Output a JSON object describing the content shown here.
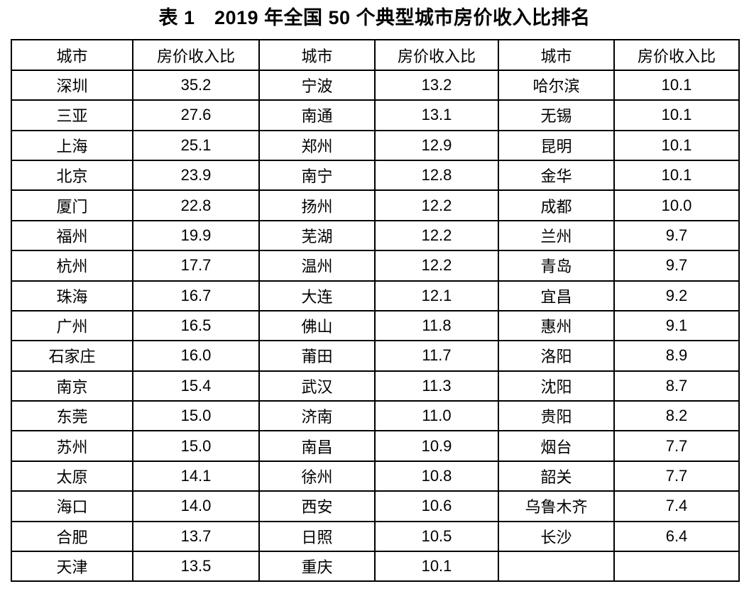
{
  "page": {
    "background_color": "#ffffff",
    "text_color": "#000000",
    "border_color": "#000000"
  },
  "title": "表 1　2019 年全国 50 个典型城市房价收入比排名",
  "table": {
    "headers": [
      "城市",
      "房价收入比",
      "城市",
      "房价收入比",
      "城市",
      "房价收入比"
    ],
    "rows": [
      [
        "深圳",
        "35.2",
        "宁波",
        "13.2",
        "哈尔滨",
        "10.1"
      ],
      [
        "三亚",
        "27.6",
        "南通",
        "13.1",
        "无锡",
        "10.1"
      ],
      [
        "上海",
        "25.1",
        "郑州",
        "12.9",
        "昆明",
        "10.1"
      ],
      [
        "北京",
        "23.9",
        "南宁",
        "12.8",
        "金华",
        "10.1"
      ],
      [
        "厦门",
        "22.8",
        "扬州",
        "12.2",
        "成都",
        "10.0"
      ],
      [
        "福州",
        "19.9",
        "芜湖",
        "12.2",
        "兰州",
        "9.7"
      ],
      [
        "杭州",
        "17.7",
        "温州",
        "12.2",
        "青岛",
        "9.7"
      ],
      [
        "珠海",
        "16.7",
        "大连",
        "12.1",
        "宜昌",
        "9.2"
      ],
      [
        "广州",
        "16.5",
        "佛山",
        "11.8",
        "惠州",
        "9.1"
      ],
      [
        "石家庄",
        "16.0",
        "莆田",
        "11.7",
        "洛阳",
        "8.9"
      ],
      [
        "南京",
        "15.4",
        "武汉",
        "11.3",
        "沈阳",
        "8.7"
      ],
      [
        "东莞",
        "15.0",
        "济南",
        "11.0",
        "贵阳",
        "8.2"
      ],
      [
        "苏州",
        "15.0",
        "南昌",
        "10.9",
        "烟台",
        "7.7"
      ],
      [
        "太原",
        "14.1",
        "徐州",
        "10.8",
        "韶关",
        "7.7"
      ],
      [
        "海口",
        "14.0",
        "西安",
        "10.6",
        "乌鲁木齐",
        "7.4"
      ],
      [
        "合肥",
        "13.7",
        "日照",
        "10.5",
        "长沙",
        "6.4"
      ],
      [
        "天津",
        "13.5",
        "重庆",
        "10.1",
        "",
        ""
      ]
    ]
  },
  "chart_data": {
    "type": "table",
    "title": "表 1　2019 年全国 50 个典型城市房价收入比排名",
    "columns": [
      "城市",
      "房价收入比"
    ],
    "rows": [
      [
        "深圳",
        35.2
      ],
      [
        "三亚",
        27.6
      ],
      [
        "上海",
        25.1
      ],
      [
        "北京",
        23.9
      ],
      [
        "厦门",
        22.8
      ],
      [
        "福州",
        19.9
      ],
      [
        "杭州",
        17.7
      ],
      [
        "珠海",
        16.7
      ],
      [
        "广州",
        16.5
      ],
      [
        "石家庄",
        16.0
      ],
      [
        "南京",
        15.4
      ],
      [
        "东莞",
        15.0
      ],
      [
        "苏州",
        15.0
      ],
      [
        "太原",
        14.1
      ],
      [
        "海口",
        14.0
      ],
      [
        "合肥",
        13.7
      ],
      [
        "天津",
        13.5
      ],
      [
        "宁波",
        13.2
      ],
      [
        "南通",
        13.1
      ],
      [
        "郑州",
        12.9
      ],
      [
        "南宁",
        12.8
      ],
      [
        "扬州",
        12.2
      ],
      [
        "芜湖",
        12.2
      ],
      [
        "温州",
        12.2
      ],
      [
        "大连",
        12.1
      ],
      [
        "佛山",
        11.8
      ],
      [
        "莆田",
        11.7
      ],
      [
        "武汉",
        11.3
      ],
      [
        "济南",
        11.0
      ],
      [
        "南昌",
        10.9
      ],
      [
        "徐州",
        10.8
      ],
      [
        "西安",
        10.6
      ],
      [
        "日照",
        10.5
      ],
      [
        "重庆",
        10.1
      ],
      [
        "哈尔滨",
        10.1
      ],
      [
        "无锡",
        10.1
      ],
      [
        "昆明",
        10.1
      ],
      [
        "金华",
        10.1
      ],
      [
        "成都",
        10.0
      ],
      [
        "兰州",
        9.7
      ],
      [
        "青岛",
        9.7
      ],
      [
        "宜昌",
        9.2
      ],
      [
        "惠州",
        9.1
      ],
      [
        "洛阳",
        8.9
      ],
      [
        "沈阳",
        8.7
      ],
      [
        "贵阳",
        8.2
      ],
      [
        "烟台",
        7.7
      ],
      [
        "韶关",
        7.7
      ],
      [
        "乌鲁木齐",
        7.4
      ],
      [
        "长沙",
        6.4
      ]
    ]
  }
}
